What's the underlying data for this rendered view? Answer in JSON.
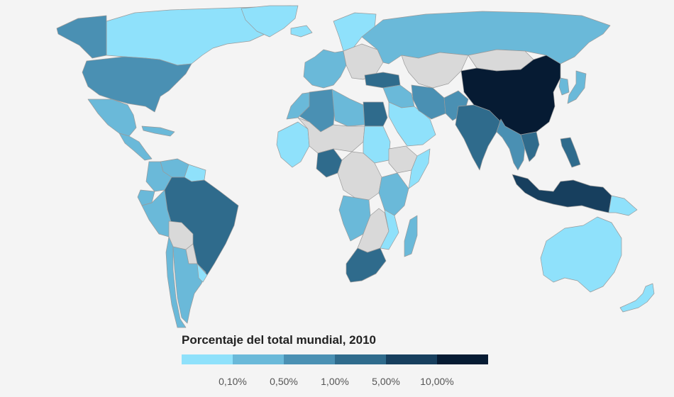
{
  "legend": {
    "title": "Porcentaje del total mundial, 2010",
    "classes": [
      {
        "label": "< 0,10%",
        "color": "#8fe1fb"
      },
      {
        "label": "0,10% – 0,50%",
        "color": "#6ab9d9"
      },
      {
        "label": "0,50% – 1,00%",
        "color": "#4a90b3"
      },
      {
        "label": "1,00% – 5,00%",
        "color": "#2f6b8c"
      },
      {
        "label": "5,00% – 10,00%",
        "color": "#173f5e"
      },
      {
        "label": "> 10,00%",
        "color": "#061b33"
      }
    ],
    "ticks": [
      "0,10%",
      "0,50%",
      "1,00%",
      "5,00%",
      "10,00%"
    ]
  },
  "colors": {
    "background": "#f4f4f4",
    "no_data": "#d9d9d9",
    "border": "#9a9a9a"
  },
  "map": {
    "regions": [
      {
        "name": "canada",
        "class": 0
      },
      {
        "name": "alaska",
        "class": 2
      },
      {
        "name": "greenland",
        "class": 0
      },
      {
        "name": "usa",
        "class": 2
      },
      {
        "name": "mexico",
        "class": 1
      },
      {
        "name": "central-america",
        "class": 1
      },
      {
        "name": "caribbean",
        "class": 1
      },
      {
        "name": "colombia",
        "class": 1
      },
      {
        "name": "venezuela",
        "class": 1
      },
      {
        "name": "guianas",
        "class": 0
      },
      {
        "name": "ecuador",
        "class": 1
      },
      {
        "name": "peru",
        "class": 1
      },
      {
        "name": "brazil",
        "class": 3
      },
      {
        "name": "bolivia",
        "class": -1
      },
      {
        "name": "paraguay",
        "class": -1
      },
      {
        "name": "chile",
        "class": 1
      },
      {
        "name": "argentina",
        "class": 1
      },
      {
        "name": "uruguay",
        "class": 0
      },
      {
        "name": "iceland",
        "class": 0
      },
      {
        "name": "scandinavia",
        "class": 0
      },
      {
        "name": "western-europe",
        "class": 1
      },
      {
        "name": "eastern-europe",
        "class": -1
      },
      {
        "name": "russia",
        "class": 1
      },
      {
        "name": "turkey",
        "class": 3
      },
      {
        "name": "middle-east",
        "class": 1
      },
      {
        "name": "saudi-arabia",
        "class": 0
      },
      {
        "name": "iran",
        "class": 2
      },
      {
        "name": "central-asia",
        "class": -1
      },
      {
        "name": "mongolia",
        "class": -1
      },
      {
        "name": "china",
        "class": 5
      },
      {
        "name": "japan",
        "class": 1
      },
      {
        "name": "korea",
        "class": 1
      },
      {
        "name": "india",
        "class": 3
      },
      {
        "name": "pakistan",
        "class": 2
      },
      {
        "name": "southeast-asia",
        "class": 2
      },
      {
        "name": "vietnam",
        "class": 3
      },
      {
        "name": "philippines",
        "class": 3
      },
      {
        "name": "indonesia",
        "class": 4
      },
      {
        "name": "papua-new-guinea",
        "class": 0
      },
      {
        "name": "australia",
        "class": 0
      },
      {
        "name": "new-zealand",
        "class": 0
      },
      {
        "name": "morocco",
        "class": 1
      },
      {
        "name": "algeria",
        "class": 2
      },
      {
        "name": "libya",
        "class": 1
      },
      {
        "name": "egypt",
        "class": 3
      },
      {
        "name": "west-africa",
        "class": 0
      },
      {
        "name": "sahel",
        "class": -1
      },
      {
        "name": "nigeria",
        "class": 3
      },
      {
        "name": "sudan",
        "class": 0
      },
      {
        "name": "ethiopia",
        "class": -1
      },
      {
        "name": "somalia",
        "class": 0
      },
      {
        "name": "central-africa",
        "class": -1
      },
      {
        "name": "east-africa",
        "class": 1
      },
      {
        "name": "angola",
        "class": 1
      },
      {
        "name": "southern-africa",
        "class": -1
      },
      {
        "name": "mozambique",
        "class": 0
      },
      {
        "name": "south-africa",
        "class": 3
      },
      {
        "name": "madagascar",
        "class": 1
      }
    ]
  }
}
